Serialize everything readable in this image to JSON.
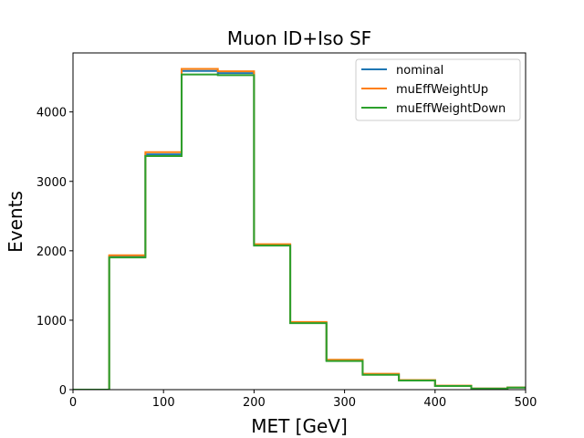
{
  "chart_data": {
    "type": "line",
    "style": "step-histogram",
    "title": "Muon ID+Iso SF",
    "xlabel": "MET [GeV]",
    "ylabel": "Events",
    "xlim": [
      0,
      500
    ],
    "ylim": [
      0,
      4850
    ],
    "xticks": [
      0,
      100,
      200,
      300,
      400,
      500
    ],
    "yticks": [
      0,
      1000,
      2000,
      3000,
      4000
    ],
    "grid": false,
    "legend_position": "top-right",
    "bin_edges": [
      0,
      40,
      80,
      120,
      160,
      200,
      240,
      280,
      320,
      360,
      400,
      440,
      480,
      500
    ],
    "series": [
      {
        "name": "nominal",
        "color": "#1f77b4",
        "values": [
          0,
          1920,
          3390,
          4590,
          4560,
          2085,
          965,
          420,
          220,
          135,
          55,
          15,
          30
        ]
      },
      {
        "name": "muEffWeightUp",
        "color": "#ff7f0e",
        "values": [
          0,
          1935,
          3420,
          4620,
          4585,
          2095,
          975,
          430,
          228,
          138,
          57,
          16,
          31
        ]
      },
      {
        "name": "muEffWeightDown",
        "color": "#2ca02c",
        "values": [
          0,
          1905,
          3365,
          4540,
          4530,
          2075,
          958,
          412,
          214,
          132,
          53,
          14,
          29
        ]
      }
    ]
  }
}
